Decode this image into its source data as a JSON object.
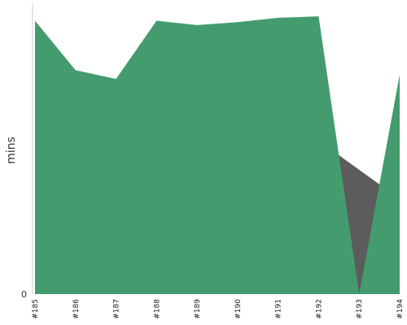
{
  "chart_data": {
    "type": "area",
    "categories": [
      "#185",
      "#186",
      "#187",
      "#188",
      "#189",
      "#190",
      "#191",
      "#192",
      "#193",
      "#194"
    ],
    "ylabel": "mins",
    "yticks": [
      "0"
    ],
    "ylim": [
      0,
      100
    ],
    "grid": false,
    "legend": "none",
    "series": [
      {
        "values": [
          94,
          77,
          74,
          94,
          92.5,
          93.5,
          95,
          95.5,
          0,
          75.5
        ],
        "color": "#449c6e"
      }
    ],
    "gap_fill_color": "#5c5c5c",
    "gap_ranges": [
      [
        7.5,
        8.5
      ]
    ]
  }
}
